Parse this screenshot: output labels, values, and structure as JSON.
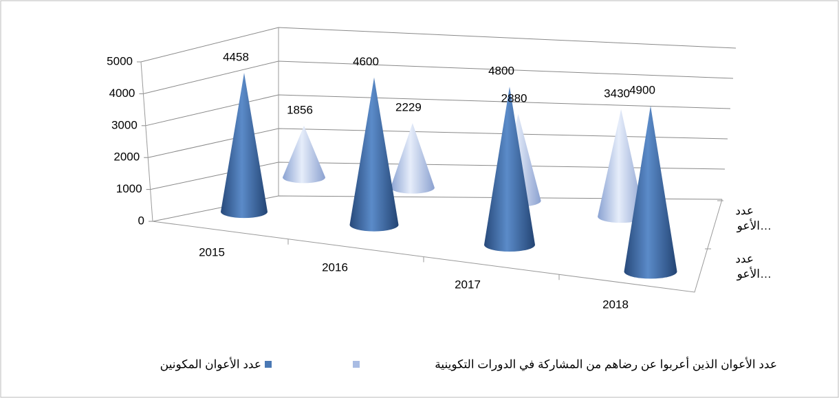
{
  "chart_data": {
    "type": "cone",
    "categories": [
      "2015",
      "2016",
      "2017",
      "2018"
    ],
    "series": [
      {
        "name": "عدد الأعوان المكونين",
        "color": "#4a78b4",
        "values": [
          4458,
          4600,
          4800,
          4900
        ]
      },
      {
        "name": "عدد الأعوان الذين أعربوا عن رضاهم من المشاركة في الدورات التكوينية",
        "color": "#a9bce3",
        "values": [
          1856,
          2229,
          2880,
          3430
        ]
      }
    ],
    "depth_labels": [
      "عدد الأعو…",
      "عدد الأعو…"
    ],
    "ylim": [
      0,
      5000
    ],
    "yticks": [
      0,
      1000,
      2000,
      3000,
      4000,
      5000
    ],
    "grid": true
  }
}
